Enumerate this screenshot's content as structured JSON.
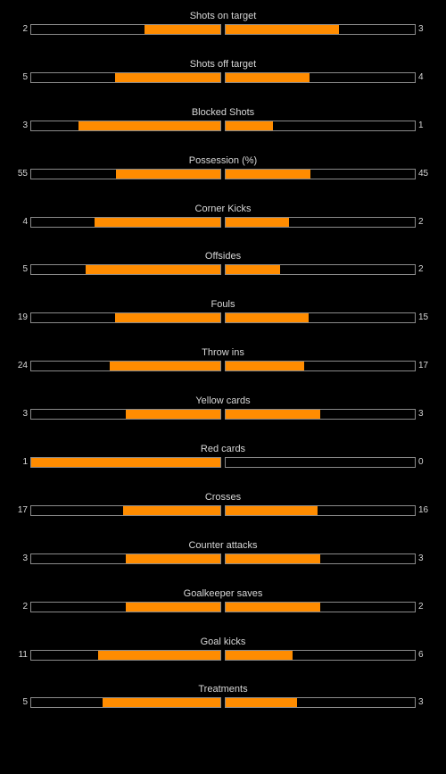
{
  "colors": {
    "background": "#000000",
    "bar_fill": "#ff8c00",
    "track_border": "#8a8a8a",
    "text": "#d8d8d8"
  },
  "stats": [
    {
      "label": "Shots on target",
      "home": "2",
      "away": "3",
      "home_share": 0.4,
      "away_share": 0.6
    },
    {
      "label": "Shots off target",
      "home": "5",
      "away": "4",
      "home_share": 0.556,
      "away_share": 0.444
    },
    {
      "label": "Blocked Shots",
      "home": "3",
      "away": "1",
      "home_share": 0.75,
      "away_share": 0.25
    },
    {
      "label": "Possession (%)",
      "home": "55",
      "away": "45",
      "home_share": 0.55,
      "away_share": 0.45
    },
    {
      "label": "Corner Kicks",
      "home": "4",
      "away": "2",
      "home_share": 0.667,
      "away_share": 0.333
    },
    {
      "label": "Offsides",
      "home": "5",
      "away": "2",
      "home_share": 0.714,
      "away_share": 0.286
    },
    {
      "label": "Fouls",
      "home": "19",
      "away": "15",
      "home_share": 0.559,
      "away_share": 0.441
    },
    {
      "label": "Throw ins",
      "home": "24",
      "away": "17",
      "home_share": 0.585,
      "away_share": 0.415
    },
    {
      "label": "Yellow cards",
      "home": "3",
      "away": "3",
      "home_share": 0.5,
      "away_share": 0.5
    },
    {
      "label": "Red cards",
      "home": "1",
      "away": "0",
      "home_share": 1.0,
      "away_share": 0.0
    },
    {
      "label": "Crosses",
      "home": "17",
      "away": "16",
      "home_share": 0.515,
      "away_share": 0.485
    },
    {
      "label": "Counter attacks",
      "home": "3",
      "away": "3",
      "home_share": 0.5,
      "away_share": 0.5
    },
    {
      "label": "Goalkeeper saves",
      "home": "2",
      "away": "2",
      "home_share": 0.5,
      "away_share": 0.5
    },
    {
      "label": "Goal kicks",
      "home": "11",
      "away": "6",
      "home_share": 0.647,
      "away_share": 0.353
    },
    {
      "label": "Treatments",
      "home": "5",
      "away": "3",
      "home_share": 0.625,
      "away_share": 0.375
    }
  ]
}
